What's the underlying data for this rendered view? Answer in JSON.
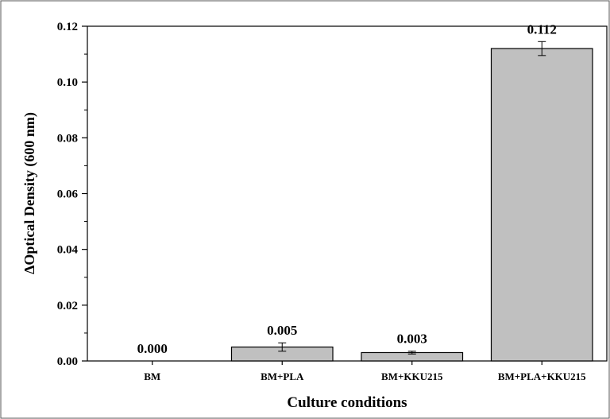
{
  "chart_data": {
    "type": "bar",
    "categories": [
      "BM",
      "BM+PLA",
      "BM+KKU215",
      "BM+PLA+KKU215"
    ],
    "values": [
      0.0,
      0.005,
      0.003,
      0.112
    ],
    "errors": [
      0.0,
      0.0015,
      0.0005,
      0.0025
    ],
    "data_labels": [
      "0.000",
      "0.005",
      "0.003",
      "0.112"
    ],
    "xlabel": "Culture conditions",
    "ylabel": "ΔOptical Density (600 nm)",
    "ylim": [
      0,
      0.12
    ],
    "yticks": [
      "0.00",
      "0.02",
      "0.04",
      "0.06",
      "0.08",
      "0.10",
      "0.12"
    ],
    "grid": false,
    "bar_color": "#c0c0c0",
    "bar_edge_color": "#000000"
  }
}
